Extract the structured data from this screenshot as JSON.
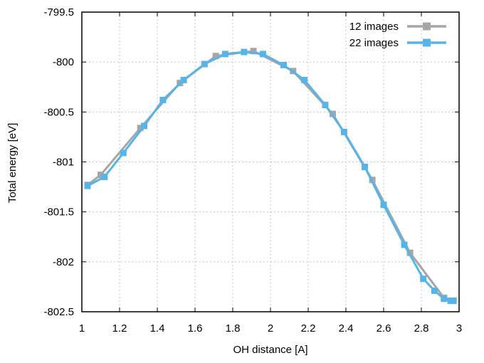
{
  "figure": {
    "background": "#ffffff",
    "border_color": "#000000",
    "grid_color": "#c4c4c4",
    "text_color": "#000000"
  },
  "chart_data": {
    "type": "line",
    "title": "",
    "xlabel": "OH distance [A]",
    "ylabel": "Total energy [eV]",
    "xlim": [
      1,
      3
    ],
    "ylim": [
      -802.5,
      -799.5
    ],
    "grid": true,
    "legend_position": "top-right-inside",
    "xtick_values": [
      1,
      1.2,
      1.4,
      1.6,
      1.8,
      2,
      2.2,
      2.4,
      2.6,
      2.8,
      3
    ],
    "xtick_labels": [
      "1",
      "1.2",
      "1.4",
      "1.6",
      "1.8",
      "2",
      "2.2",
      "2.4",
      "2.6",
      "2.8",
      "3"
    ],
    "ytick_values": [
      -799.5,
      -800,
      -800.5,
      -801,
      -801.5,
      -802,
      -802.5
    ],
    "ytick_labels": [
      "-799.5",
      "-800",
      "-800.5",
      "-801",
      "-801.5",
      "-802",
      "-802.5"
    ],
    "series": [
      {
        "name": "12 images",
        "color": "#a6a6a6",
        "marker": "square",
        "x": [
          1.03,
          1.1,
          1.31,
          1.52,
          1.71,
          1.91,
          2.12,
          2.33,
          2.54,
          2.74,
          2.92,
          2.97
        ],
        "y": [
          -801.23,
          -801.13,
          -800.66,
          -800.21,
          -799.94,
          -799.89,
          -800.09,
          -800.52,
          -801.18,
          -801.91,
          -802.36,
          -802.39
        ]
      },
      {
        "name": "22 images",
        "color": "#56b4e9",
        "marker": "square",
        "x": [
          1.03,
          1.12,
          1.22,
          1.33,
          1.43,
          1.54,
          1.65,
          1.76,
          1.86,
          1.96,
          2.07,
          2.18,
          2.29,
          2.39,
          2.5,
          2.6,
          2.71,
          2.81,
          2.87,
          2.92,
          2.955,
          2.97
        ],
        "y": [
          -801.24,
          -801.15,
          -800.91,
          -800.64,
          -800.38,
          -800.18,
          -800.02,
          -799.92,
          -799.9,
          -799.92,
          -800.03,
          -800.18,
          -800.43,
          -800.7,
          -801.05,
          -801.43,
          -801.83,
          -802.17,
          -802.29,
          -802.37,
          -802.39,
          -802.39
        ]
      }
    ]
  }
}
